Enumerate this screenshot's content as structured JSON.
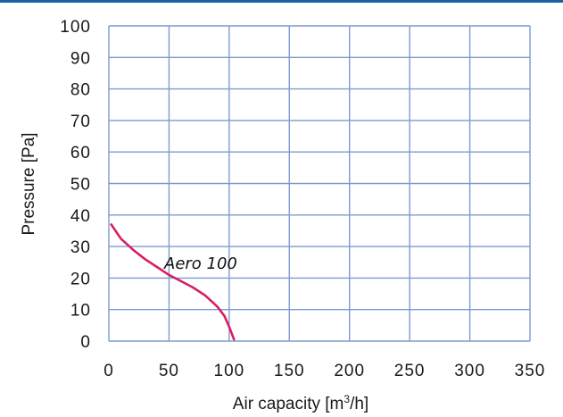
{
  "colors": {
    "header_bar": "#1f5fa8",
    "grid": "#7e9bd0",
    "curve": "#d81e63",
    "text": "#1a1a1a"
  },
  "chart_data": {
    "type": "line",
    "xlabel_main": "Air capacity [m",
    "xlabel_sup": "3",
    "xlabel_end": "/h]",
    "ylabel": "Pressure [Pa]",
    "xlim": [
      0,
      350
    ],
    "ylim": [
      0,
      100
    ],
    "grid": true,
    "x_ticks": [
      "0",
      "50",
      "100",
      "150",
      "200",
      "250",
      "300",
      "350"
    ],
    "y_ticks": [
      "0",
      "10",
      "20",
      "30",
      "40",
      "50",
      "60",
      "70",
      "80",
      "90",
      "100"
    ],
    "x_tick_values": [
      0,
      50,
      100,
      150,
      200,
      250,
      300,
      350
    ],
    "y_tick_values": [
      0,
      10,
      20,
      30,
      40,
      50,
      60,
      70,
      80,
      90,
      100
    ],
    "series": [
      {
        "name": "Aero 100",
        "x": [
          2,
          10,
          20,
          30,
          40,
          50,
          60,
          70,
          80,
          90,
          96,
          100,
          104
        ],
        "y": [
          37,
          32.5,
          29,
          26,
          23.5,
          21,
          19,
          17,
          14.5,
          11,
          8,
          4.5,
          0.5
        ]
      }
    ]
  }
}
